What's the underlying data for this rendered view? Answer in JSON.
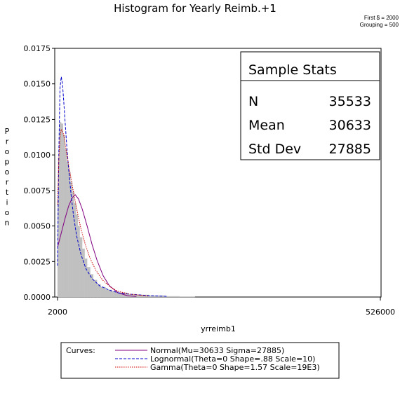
{
  "chart_data": {
    "type": "histogram",
    "title": "Histogram for Yearly Reimb.+1",
    "notes": [
      "First $ = 2000",
      "Grouping = 500"
    ],
    "xlabel": "yrreimb1",
    "ylabel": "Proportion",
    "x_ticks": [
      "2000",
      "526000"
    ],
    "xlim": [
      2000,
      526000
    ],
    "ylim": [
      0,
      0.0175
    ],
    "y_ticks": [
      "0.0000",
      "0.0025",
      "0.0050",
      "0.0075",
      "0.0100",
      "0.0125",
      "0.0150",
      "0.0175"
    ],
    "bin_width": 500,
    "bins": {
      "x": [
        2000,
        3000,
        5000,
        8000,
        11000,
        14000,
        17000,
        20000,
        23000,
        26000,
        29000,
        32000,
        35000,
        38000,
        42000,
        46000,
        50000,
        55000,
        60000,
        66000,
        72000,
        80000,
        90000,
        100000,
        115000,
        130000,
        150000,
        175000,
        200000
      ],
      "values": [
        0.0068,
        0.0098,
        0.0123,
        0.0122,
        0.0114,
        0.0104,
        0.0095,
        0.0088,
        0.0081,
        0.0074,
        0.0066,
        0.0058,
        0.005,
        0.0042,
        0.0034,
        0.0027,
        0.0021,
        0.0016,
        0.0012,
        0.0009,
        0.0007,
        0.0005,
        0.0004,
        0.0003,
        0.0002,
        0.00015,
        0.0001,
        5e-05,
        3e-05
      ]
    },
    "curves": [
      {
        "name": "Normal(Mu=30633 Sigma=27885)",
        "color": "#800080",
        "dash": "solid",
        "points": {
          "x": [
            2000,
            8000,
            14000,
            20000,
            26000,
            30633,
            36000,
            42000,
            50000,
            58000,
            66000,
            76000,
            86000,
            100000,
            115000,
            130000
          ],
          "y": [
            0.0035,
            0.0045,
            0.0055,
            0.0064,
            0.007,
            0.0072,
            0.0069,
            0.0062,
            0.005,
            0.0037,
            0.0026,
            0.0015,
            0.0008,
            0.0003,
            0.0001,
            3e-05
          ]
        }
      },
      {
        "name": "Lognormal(Theta=0 Shape=.88 Scale=10)",
        "color": "#0000cc",
        "dash": "dashed",
        "points": {
          "x": [
            2000,
            4000,
            6000,
            8000,
            10000,
            12000,
            14000,
            17000,
            20000,
            24000,
            28000,
            33000,
            40000,
            48000,
            58000,
            70000,
            85000,
            100000,
            120000,
            150000,
            180000
          ],
          "y": [
            0.0022,
            0.01,
            0.0147,
            0.0155,
            0.015,
            0.0138,
            0.0125,
            0.0106,
            0.009,
            0.0072,
            0.0057,
            0.0043,
            0.003,
            0.002,
            0.0013,
            0.0008,
            0.0005,
            0.0003,
            0.0002,
            0.0001,
            5e-05
          ]
        }
      },
      {
        "name": "Gamma(Theta=0 Shape=1.57 Scale=19E3)",
        "color": "#cc0000",
        "dash": "dotted",
        "points": {
          "x": [
            2000,
            4000,
            6000,
            8000,
            10000,
            12000,
            15000,
            18000,
            22000,
            26000,
            30000,
            35000,
            40000,
            47000,
            55000,
            64000,
            75000,
            88000,
            100000,
            120000,
            150000
          ],
          "y": [
            0.0065,
            0.0096,
            0.0112,
            0.0118,
            0.0117,
            0.0114,
            0.0106,
            0.0098,
            0.0088,
            0.0078,
            0.0069,
            0.0058,
            0.0048,
            0.0037,
            0.0027,
            0.0019,
            0.0012,
            0.0007,
            0.0004,
            0.0002,
            6e-05
          ]
        }
      }
    ],
    "legend": {
      "title": "Curves:",
      "position": "bottom"
    },
    "stats_box": {
      "title": "Sample Stats",
      "rows": [
        {
          "label": "N",
          "value": "35533"
        },
        {
          "label": "Mean",
          "value": "30633"
        },
        {
          "label": "Std Dev",
          "value": "27885"
        }
      ]
    },
    "colors": {
      "bars": "#c0c0c0",
      "frame": "#000000"
    }
  }
}
